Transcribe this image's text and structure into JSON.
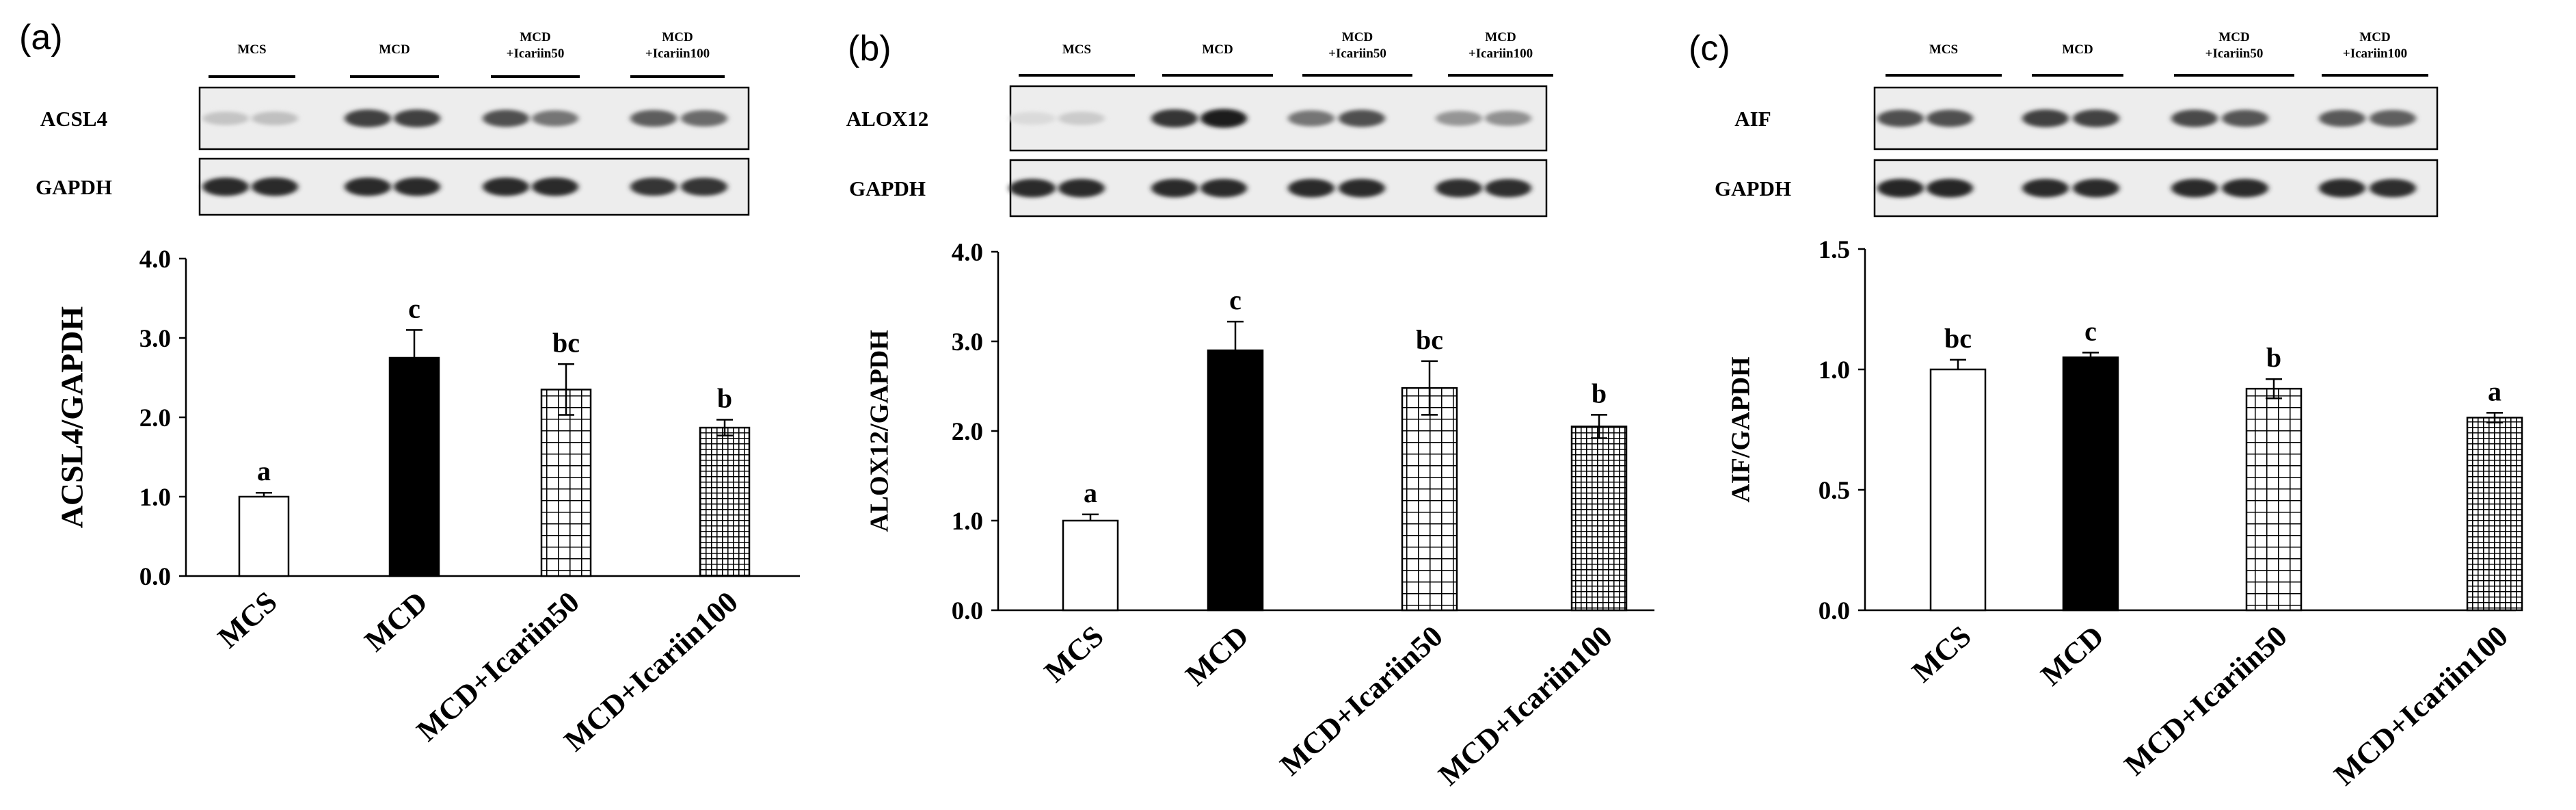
{
  "figure": {
    "panels": [
      {
        "letter": "(a)",
        "blots": [
          {
            "protein": "ACSL4",
            "intensities": [
              0.18,
              0.2,
              0.8,
              0.8,
              0.72,
              0.55,
              0.66,
              0.6
            ]
          },
          {
            "protein": "GAPDH",
            "intensities": [
              0.9,
              0.9,
              0.9,
              0.9,
              0.9,
              0.9,
              0.85,
              0.85
            ]
          }
        ]
      },
      {
        "letter": "(b)",
        "blots": [
          {
            "protein": "ALOX12",
            "intensities": [
              0.08,
              0.15,
              0.85,
              0.95,
              0.55,
              0.72,
              0.4,
              0.42
            ]
          },
          {
            "protein": "GAPDH",
            "intensities": [
              0.9,
              0.9,
              0.9,
              0.9,
              0.9,
              0.9,
              0.88,
              0.88
            ]
          }
        ]
      },
      {
        "letter": "(c)",
        "blots": [
          {
            "protein": "AIF",
            "intensities": [
              0.72,
              0.72,
              0.8,
              0.78,
              0.75,
              0.7,
              0.68,
              0.65
            ]
          },
          {
            "protein": "GAPDH",
            "intensities": [
              0.92,
              0.92,
              0.9,
              0.9,
              0.9,
              0.9,
              0.9,
              0.88
            ]
          }
        ]
      }
    ],
    "blot_groups": [
      {
        "line1": "MCS",
        "line2": ""
      },
      {
        "line1": "MCD",
        "line2": ""
      },
      {
        "line1": "MCD",
        "line2": "+Icariin50"
      },
      {
        "line1": "MCD",
        "line2": "+Icariin100"
      }
    ]
  },
  "chart_data": [
    {
      "type": "bar",
      "title": "",
      "xlabel": "",
      "ylabel": "ACSL4/GAPDH",
      "ylim": [
        0,
        4
      ],
      "yticks": [
        "0.0",
        "1.0",
        "2.0",
        "3.0",
        "4.0"
      ],
      "categories": [
        "MCS",
        "MCD",
        "MCD+Icariin50",
        "MCD+Icariin100"
      ],
      "values": [
        1.0,
        2.75,
        2.35,
        1.87
      ],
      "errors": [
        0.05,
        0.35,
        0.32,
        0.1
      ],
      "significance": [
        "a",
        "c",
        "bc",
        "b"
      ],
      "fills": [
        "white",
        "black",
        "grid",
        "fine-grid"
      ],
      "grid": false,
      "legend": "none"
    },
    {
      "type": "bar",
      "title": "",
      "xlabel": "",
      "ylabel": "ALOX12/GAPDH",
      "ylim": [
        0,
        4
      ],
      "yticks": [
        "0.0",
        "1.0",
        "2.0",
        "3.0",
        "4.0"
      ],
      "categories": [
        "MCS",
        "MCD",
        "MCD+Icariin50",
        "MCD+Icariin100"
      ],
      "values": [
        1.0,
        2.9,
        2.48,
        2.05
      ],
      "errors": [
        0.07,
        0.32,
        0.3,
        0.13
      ],
      "significance": [
        "a",
        "c",
        "bc",
        "b"
      ],
      "fills": [
        "white",
        "black",
        "grid",
        "fine-grid"
      ],
      "grid": false,
      "legend": "none"
    },
    {
      "type": "bar",
      "title": "",
      "xlabel": "",
      "ylabel": "AIF/GAPDH",
      "ylim": [
        0,
        1.5
      ],
      "yticks": [
        "0.0",
        "0.5",
        "1.0",
        "1.5"
      ],
      "categories": [
        "MCS",
        "MCD",
        "MCD+Icariin50",
        "MCD+Icariin100"
      ],
      "values": [
        1.0,
        1.05,
        0.92,
        0.8
      ],
      "errors": [
        0.04,
        0.02,
        0.04,
        0.02
      ],
      "significance": [
        "bc",
        "c",
        "b",
        "a"
      ],
      "fills": [
        "white",
        "black",
        "grid",
        "fine-grid"
      ],
      "grid": false,
      "legend": "none"
    }
  ]
}
